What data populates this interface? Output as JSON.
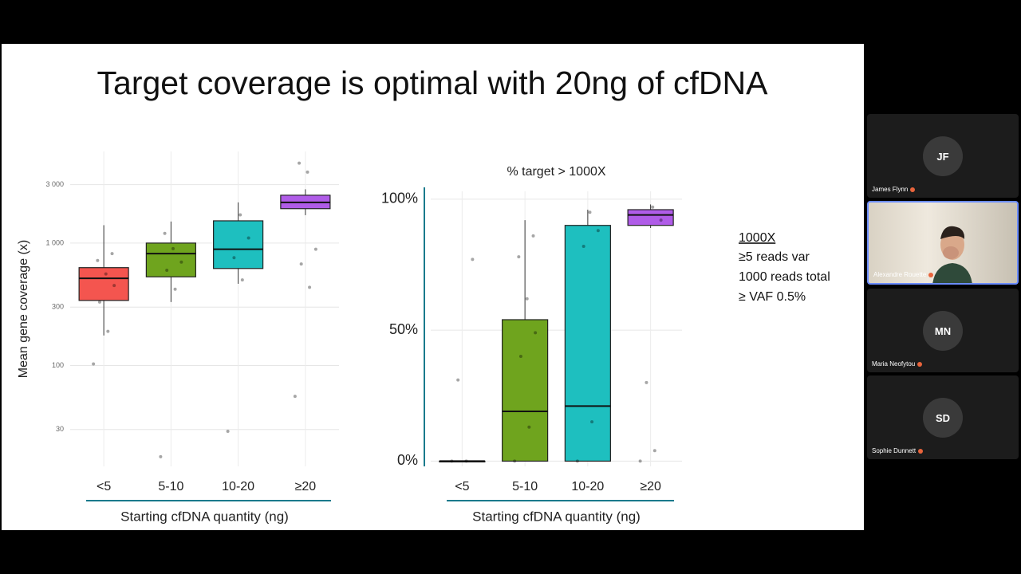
{
  "slide": {
    "title": "Target coverage is optimal with 20ng of cfDNA",
    "notes": [
      "1000X",
      "≥5 reads var",
      "1000 reads total",
      "≥ VAF 0.5%"
    ]
  },
  "participants": [
    {
      "initials": "JF",
      "name": "James Flynn"
    },
    {
      "initials": null,
      "name": "Alexandre Rouette"
    },
    {
      "initials": "MN",
      "name": "Maria Neofytou"
    },
    {
      "initials": "SD",
      "name": "Sophie Dunnett"
    }
  ],
  "chart_data": [
    {
      "type": "box",
      "ylabel": "Mean gene coverage (x)",
      "xlabel": "Starting cfDNA quantity (ng)",
      "categories": [
        "<5",
        "5-10",
        "10-20",
        "≥20"
      ],
      "log_scale": true,
      "grid": true,
      "ylim": [
        15,
        5600
      ],
      "yticks": [
        30,
        100,
        300,
        {
          "value": 1000,
          "label": "1 000"
        },
        {
          "value": 3000,
          "label": "3 000"
        }
      ],
      "boxes": [
        {
          "color": "#f4554f",
          "min": 176,
          "q1": 340,
          "median": 515,
          "q3": 630,
          "max": 1400,
          "points": [
            103,
            190,
            330,
            450,
            560,
            720,
            820
          ]
        },
        {
          "color": "#6fa41e",
          "min": 330,
          "q1": 530,
          "median": 820,
          "q3": 1000,
          "max": 1500,
          "points": [
            18,
            420,
            600,
            700,
            900,
            1200
          ]
        },
        {
          "color": "#1ebfbf",
          "min": 465,
          "q1": 620,
          "median": 890,
          "q3": 1520,
          "max": 2150,
          "points": [
            29,
            500,
            760,
            1100,
            1700
          ]
        },
        {
          "color": "#b05ce8",
          "min": 1690,
          "q1": 1910,
          "median": 2150,
          "q3": 2460,
          "max": 2750,
          "points": [
            56,
            435,
            675,
            890,
            3800,
            4500
          ]
        }
      ]
    },
    {
      "type": "box",
      "title": "% target > 1000X",
      "xlabel": "Starting cfDNA quantity (ng)",
      "categories": [
        "<5",
        "5-10",
        "10-20",
        "≥20"
      ],
      "log_scale": false,
      "grid": true,
      "ylim": [
        -2,
        103
      ],
      "yticks": [
        {
          "value": 0,
          "label": "0%"
        },
        {
          "value": 50,
          "label": "50%"
        },
        {
          "value": 100,
          "label": "100%"
        }
      ],
      "boxes": [
        {
          "color": "#f4554f",
          "min": 0,
          "q1": 0,
          "median": 0,
          "q3": 0,
          "max": 0,
          "points": [
            0,
            0,
            31,
            77
          ]
        },
        {
          "color": "#6fa41e",
          "min": 0,
          "q1": 0,
          "median": 19,
          "q3": 54,
          "max": 92,
          "points": [
            0,
            13,
            40,
            49,
            62,
            78,
            86
          ]
        },
        {
          "color": "#1ebfbf",
          "min": 0,
          "q1": 0,
          "median": 21,
          "q3": 90,
          "max": 96,
          "points": [
            0,
            15,
            82,
            88,
            95
          ]
        },
        {
          "color": "#b05ce8",
          "min": 89,
          "q1": 90,
          "median": 94,
          "q3": 96,
          "max": 98,
          "points": [
            0,
            4,
            30,
            92,
            97
          ]
        }
      ]
    }
  ]
}
